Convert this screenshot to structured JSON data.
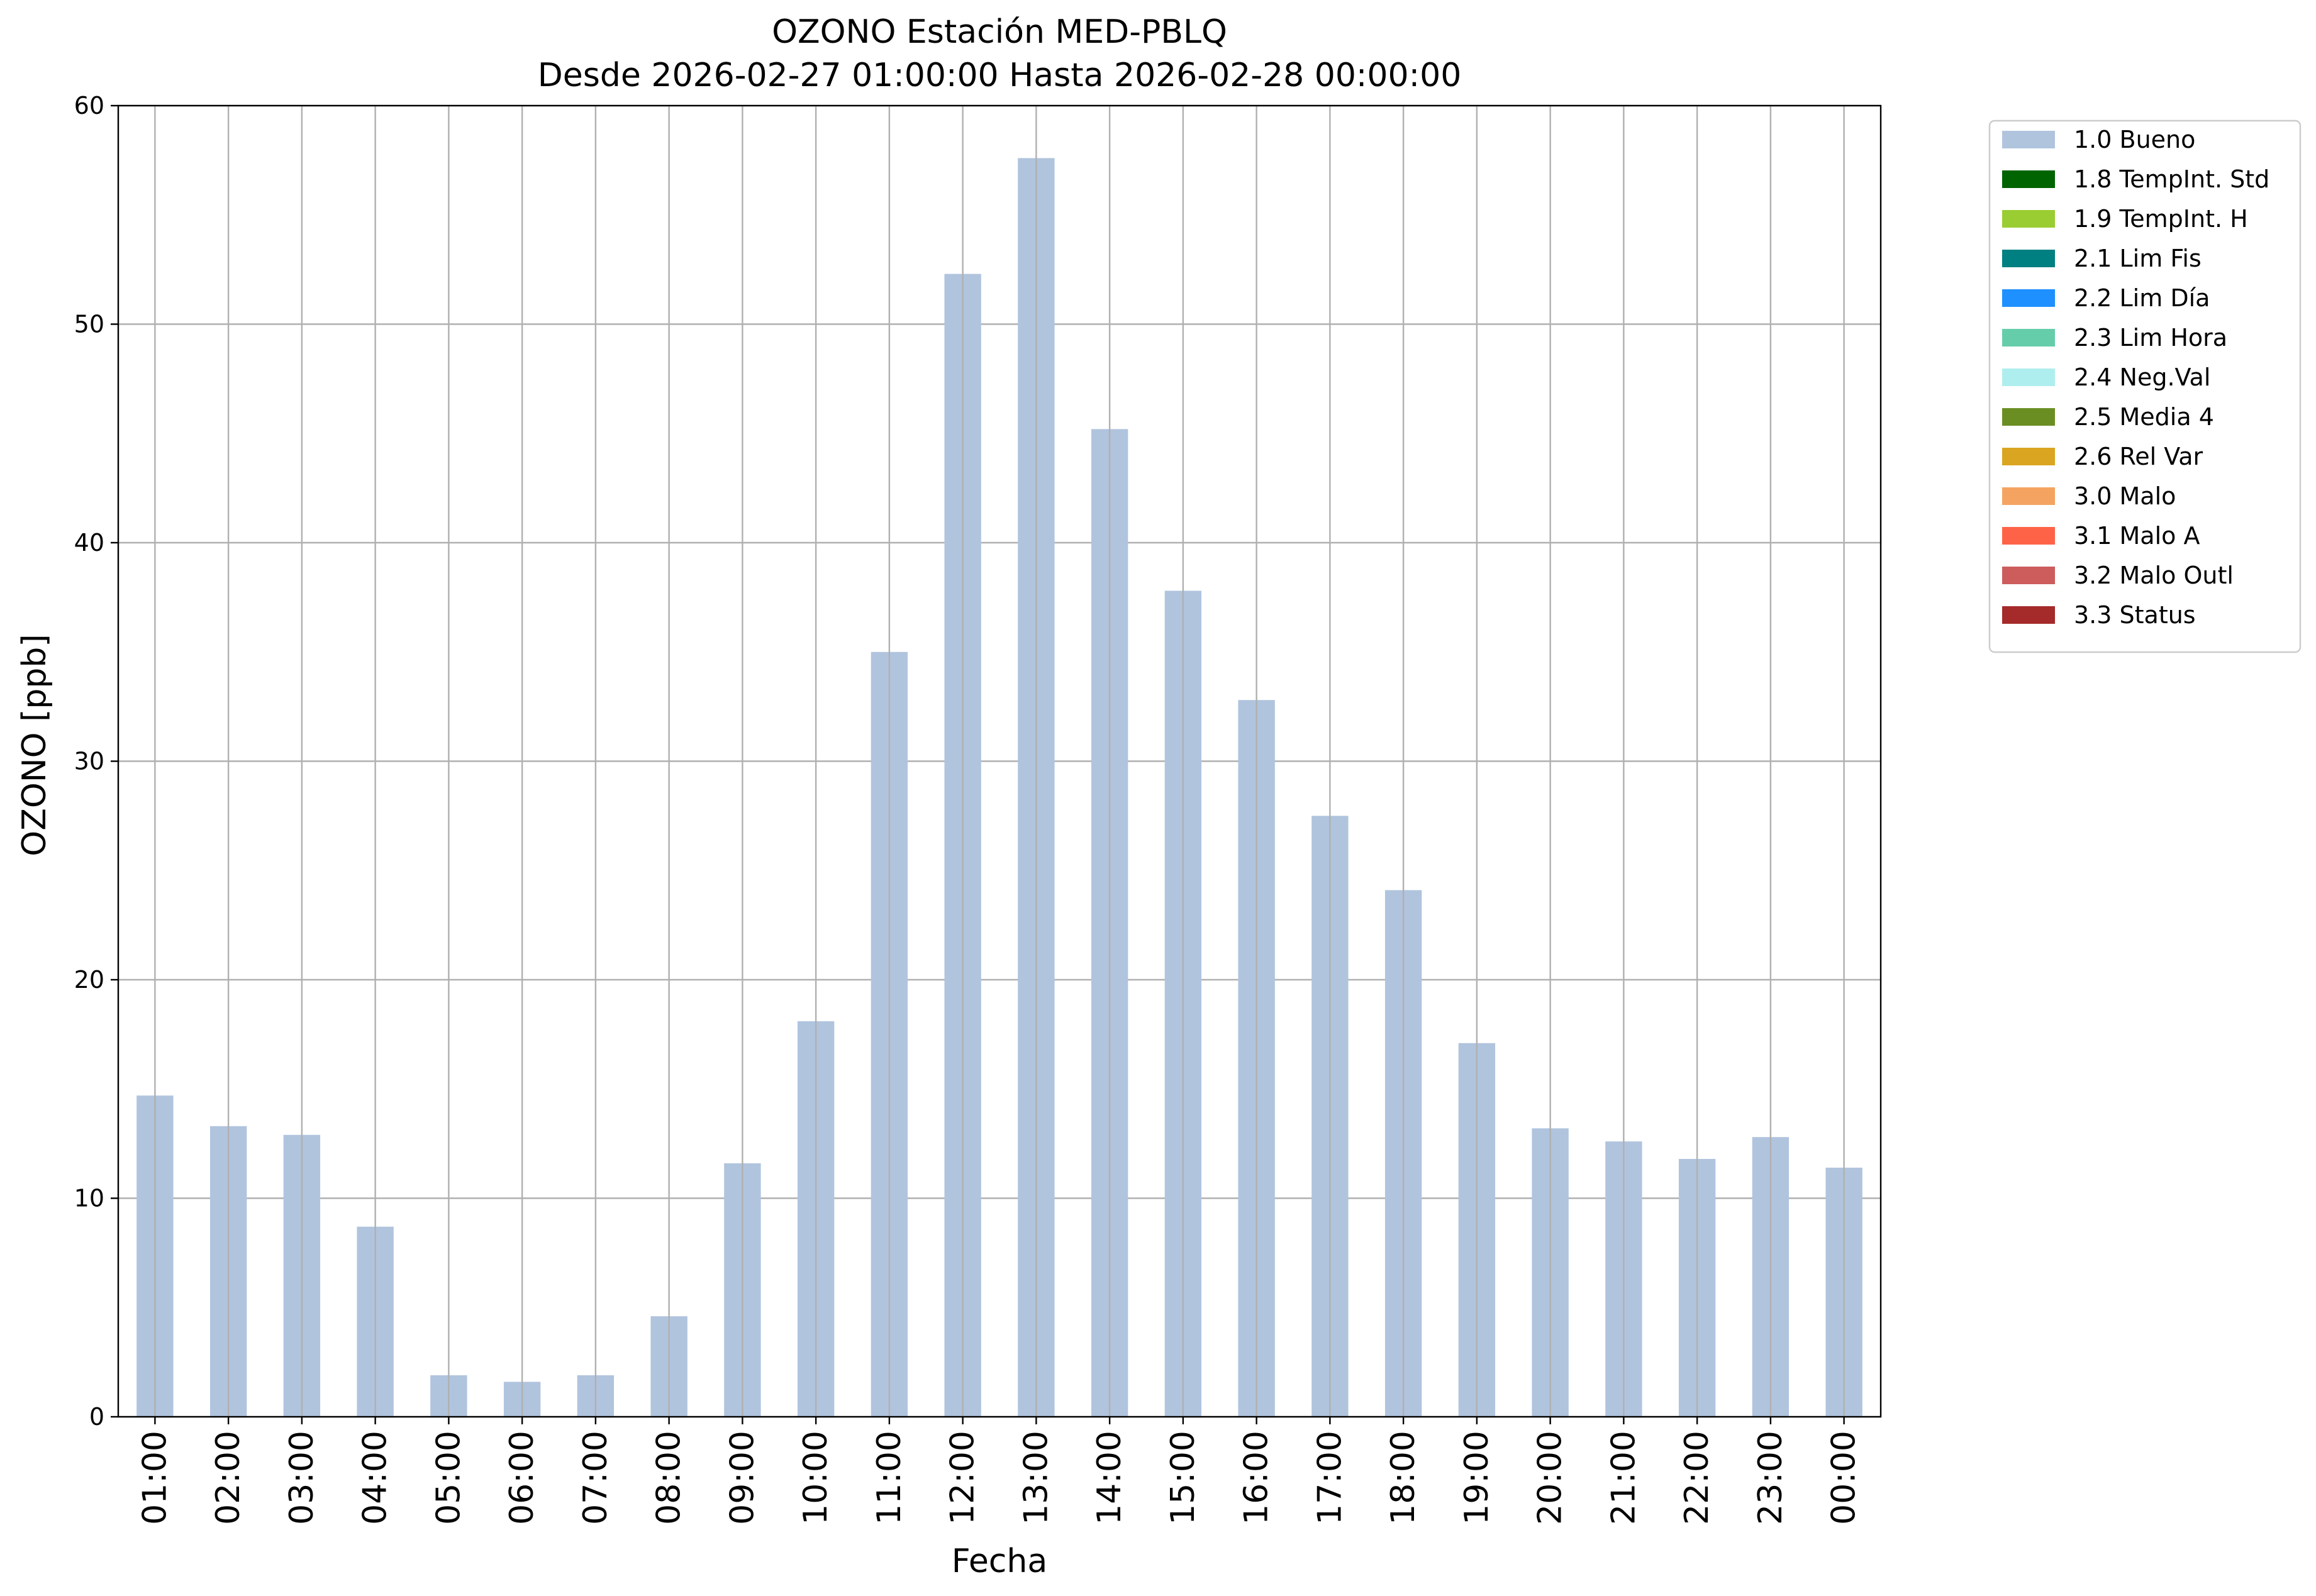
{
  "chart_data": {
    "type": "bar",
    "title": "OZONO Estación MED-PBLQ",
    "subtitle": "Desde 2026-02-27 01:00:00 Hasta 2026-02-28 00:00:00",
    "xlabel": "Fecha",
    "ylabel": "OZONO [ppb]",
    "ylim": [
      0,
      60
    ],
    "yticks": [
      0,
      10,
      20,
      30,
      40,
      50,
      60
    ],
    "grid": true,
    "legend_position": "outside-top-right",
    "categories": [
      "01:00",
      "02:00",
      "03:00",
      "04:00",
      "05:00",
      "06:00",
      "07:00",
      "08:00",
      "09:00",
      "10:00",
      "11:00",
      "12:00",
      "13:00",
      "14:00",
      "15:00",
      "16:00",
      "17:00",
      "18:00",
      "19:00",
      "20:00",
      "21:00",
      "22:00",
      "23:00",
      "00:00"
    ],
    "series": [
      {
        "name": "1.0 Bueno",
        "color": "#b0c4de",
        "values": [
          14.7,
          13.3,
          12.9,
          8.7,
          1.9,
          1.6,
          1.9,
          4.6,
          11.6,
          18.1,
          35.0,
          52.3,
          57.6,
          45.2,
          37.8,
          32.8,
          27.5,
          24.1,
          17.1,
          13.2,
          12.6,
          11.8,
          12.8,
          11.4
        ]
      }
    ],
    "legend": [
      {
        "label": "1.0 Bueno",
        "color": "#b0c4de"
      },
      {
        "label": "1.8 TempInt. Std",
        "color": "#006400"
      },
      {
        "label": "1.9 TempInt. H",
        "color": "#9acd32"
      },
      {
        "label": "2.1 Lim Fis",
        "color": "#008080"
      },
      {
        "label": "2.2 Lim Día",
        "color": "#1e90ff"
      },
      {
        "label": "2.3 Lim Hora",
        "color": "#66cdaa"
      },
      {
        "label": "2.4 Neg.Val",
        "color": "#afeeee"
      },
      {
        "label": "2.5 Media 4",
        "color": "#6b8e23"
      },
      {
        "label": "2.6 Rel Var",
        "color": "#daa520"
      },
      {
        "label": "3.0 Malo",
        "color": "#f4a460"
      },
      {
        "label": "3.1 Malo A",
        "color": "#ff6347"
      },
      {
        "label": "3.2 Malo Outl",
        "color": "#cd5c5c"
      },
      {
        "label": "3.3 Status",
        "color": "#a52a2a"
      }
    ]
  }
}
